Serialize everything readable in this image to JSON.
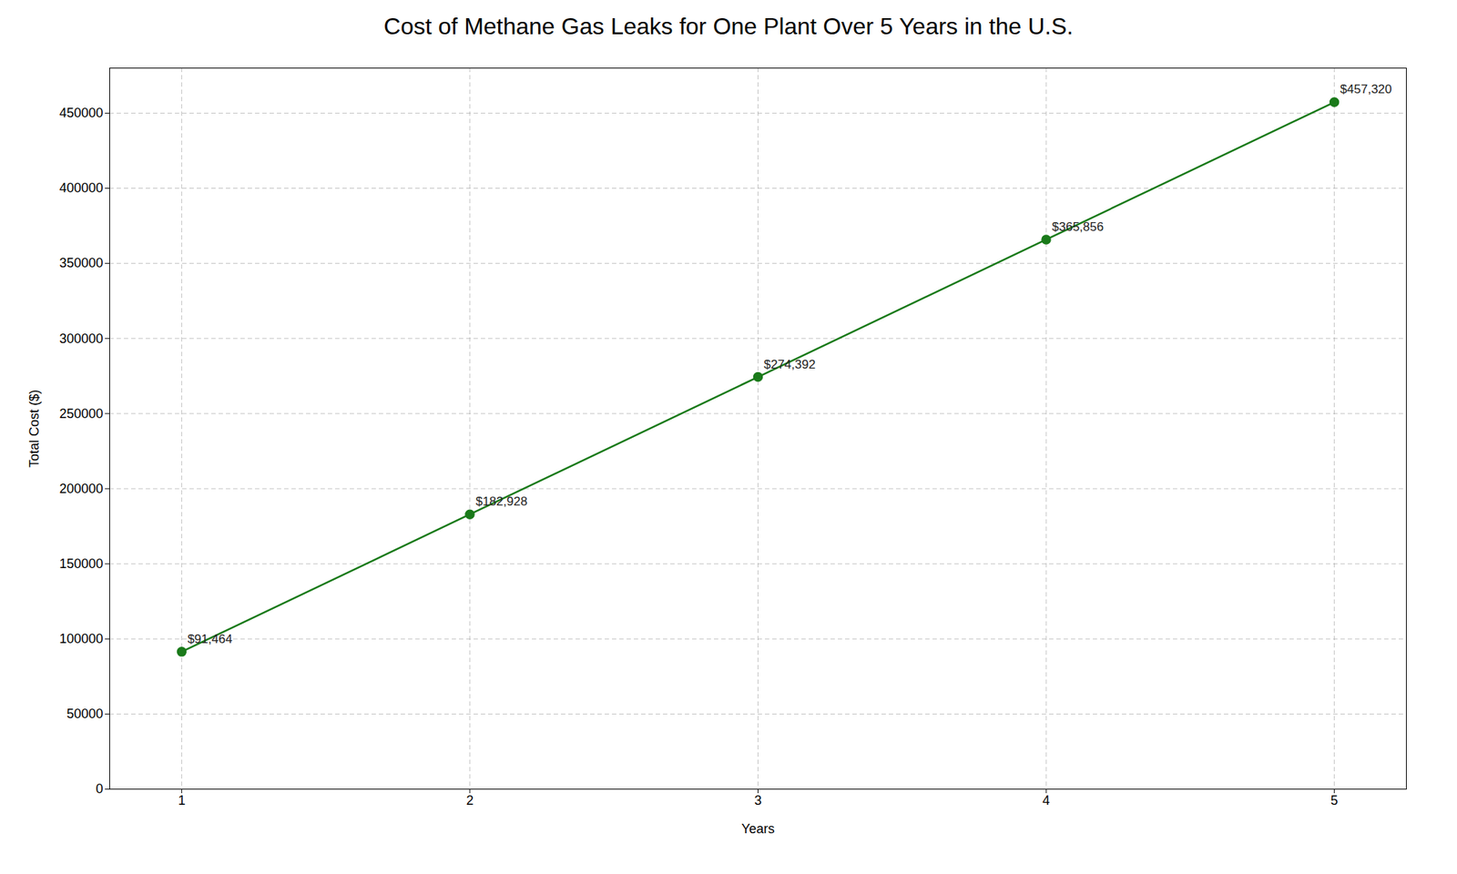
{
  "chart_data": {
    "type": "line",
    "title": "Cost of Methane Gas Leaks for One Plant Over 5 Years in the U.S.",
    "xlabel": "Years",
    "ylabel": "Total Cost ($)",
    "x": [
      1,
      2,
      3,
      4,
      5
    ],
    "values": [
      91464,
      182928,
      274392,
      365856,
      457320
    ],
    "value_labels": [
      "$91,464",
      "$182,928",
      "$274,392",
      "$365,856",
      "$457,320"
    ],
    "data_labels": true,
    "color": "#1a7a1a",
    "marker": "circle",
    "line_style": "solid",
    "xlim": [
      0.75,
      5.25
    ],
    "xticks": [
      1,
      2,
      3,
      4,
      5
    ],
    "ylim": [
      0,
      480000
    ],
    "yticks": [
      0,
      50000,
      100000,
      150000,
      200000,
      250000,
      300000,
      350000,
      400000,
      450000
    ],
    "grid": true
  }
}
